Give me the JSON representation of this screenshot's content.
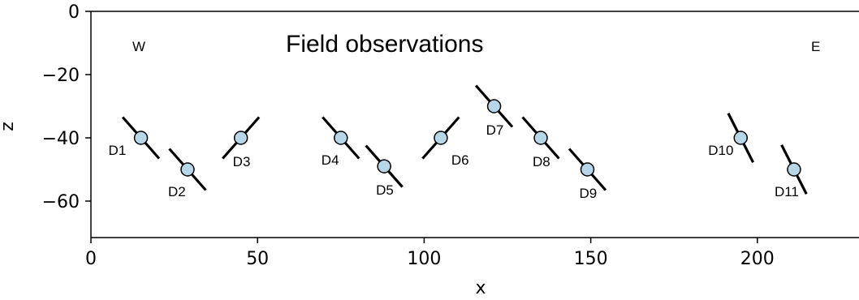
{
  "chart_data": {
    "type": "scatter",
    "title": "Field observations",
    "xlabel": "x",
    "ylabel": "z",
    "xlim": [
      0,
      230
    ],
    "ylim": [
      -70,
      0
    ],
    "x_ticks": [
      0,
      50,
      100,
      150,
      200
    ],
    "y_ticks": [
      0,
      -20,
      -40,
      -60
    ],
    "grid": false,
    "corner_labels": [
      "W",
      "E"
    ],
    "marker_color": "#b7d7e8",
    "line_color": "#000000",
    "points": [
      {
        "label": "D1",
        "x": 15,
        "z": -40,
        "dip": "down-right",
        "label_pos": "left"
      },
      {
        "label": "D2",
        "x": 29,
        "z": -50,
        "dip": "down-right",
        "label_pos": "below-left"
      },
      {
        "label": "D3",
        "x": 45,
        "z": -40,
        "dip": "up-right",
        "label_pos": "below"
      },
      {
        "label": "D4",
        "x": 75,
        "z": -40,
        "dip": "down-right",
        "label_pos": "below-left"
      },
      {
        "label": "D5",
        "x": 88,
        "z": -49,
        "dip": "down-right",
        "label_pos": "below"
      },
      {
        "label": "D6",
        "x": 105,
        "z": -40,
        "dip": "up-right",
        "label_pos": "below-right"
      },
      {
        "label": "D7",
        "x": 121,
        "z": -30,
        "dip": "down-right",
        "label_pos": "below"
      },
      {
        "label": "D8",
        "x": 135,
        "z": -40,
        "dip": "down-right",
        "label_pos": "below"
      },
      {
        "label": "D9",
        "x": 149,
        "z": -50,
        "dip": "down-right",
        "label_pos": "below"
      },
      {
        "label": "D10",
        "x": 195,
        "z": -40,
        "dip": "steep-down-right",
        "label_pos": "left"
      },
      {
        "label": "D11",
        "x": 211,
        "z": -50,
        "dip": "steep-down-right",
        "label_pos": "below-left"
      }
    ]
  }
}
